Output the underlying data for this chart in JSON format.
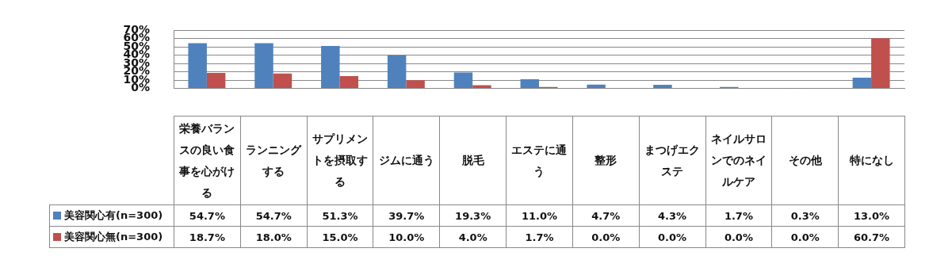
{
  "chart_data": {
    "type": "bar",
    "categories": [
      "栄養バランスの良い食事を心がける",
      "ランニングする",
      "サプリメントを摂取する",
      "ジムに通う",
      "脱毛",
      "エステに通う",
      "整形",
      "まつげエクステ",
      "ネイルサロンでのネイルケア",
      "その他",
      "特になし"
    ],
    "series": [
      {
        "name": "美容関心有(n=300)",
        "color": "#4f81bd",
        "values": [
          54.7,
          54.7,
          51.3,
          39.7,
          19.3,
          11.0,
          4.7,
          4.3,
          1.7,
          0.3,
          13.0
        ],
        "value_labels": [
          "54.7%",
          "54.7%",
          "51.3%",
          "39.7%",
          "19.3%",
          "11.0%",
          "4.7%",
          "4.3%",
          "1.7%",
          "0.3%",
          "13.0%"
        ]
      },
      {
        "name": "美容関心無(n=300)",
        "color": "#c0504d",
        "values": [
          18.7,
          18.0,
          15.0,
          10.0,
          4.0,
          1.7,
          0.0,
          0.0,
          0.0,
          0.0,
          60.7
        ],
        "value_labels": [
          "18.7%",
          "18.0%",
          "15.0%",
          "10.0%",
          "4.0%",
          "1.7%",
          "0.0%",
          "0.0%",
          "0.0%",
          "0.0%",
          "60.7%"
        ]
      }
    ],
    "ylim": [
      0,
      70
    ],
    "yticks": [
      {
        "value": 0,
        "label": "0%"
      },
      {
        "value": 10,
        "label": "10%"
      },
      {
        "value": 20,
        "label": "20%"
      },
      {
        "value": 30,
        "label": "30%"
      },
      {
        "value": 40,
        "label": "40%"
      },
      {
        "value": 50,
        "label": "50%"
      },
      {
        "value": 60,
        "label": "60%"
      },
      {
        "value": 70,
        "label": "70%"
      }
    ],
    "grid": "y",
    "legend": "bottom left"
  }
}
